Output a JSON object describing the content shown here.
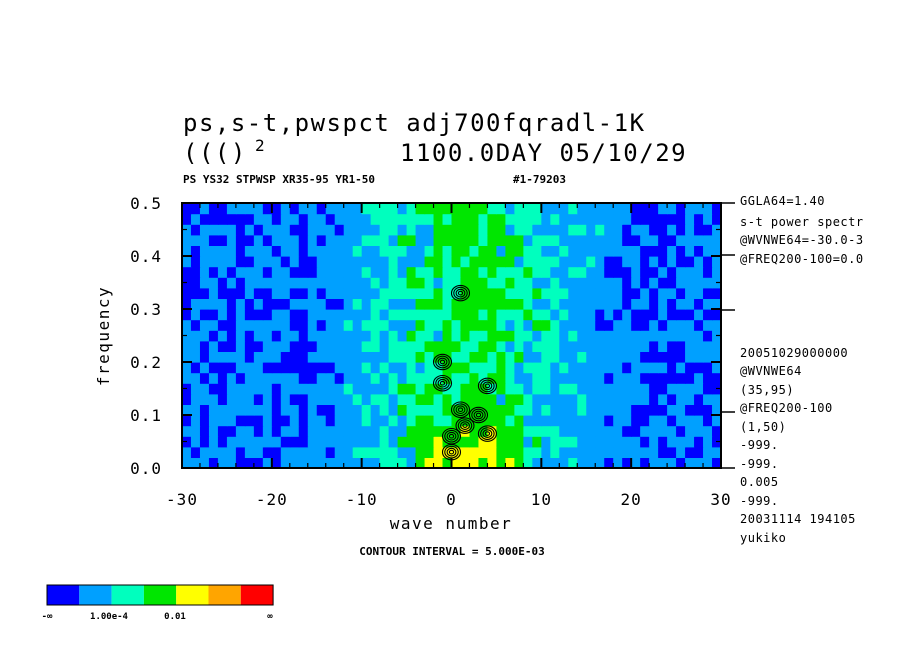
{
  "header": {
    "title_line1": "ps,s-t,pwspct  adj700fqradl-1K",
    "title_line2_left": "((()",
    "title_line2_sup": "2",
    "title_line2_right": "1100.0DAY 05/10/29",
    "subtitle_left": "PS YS32 STPWSP XR35-95 YR1-50",
    "subtitle_right": "#1-79203"
  },
  "side_info_top": [
    "GGLA64=1.40",
    "s-t power spectr",
    "@WVNWE64=-30.0-3",
    "@FREQ200-100=0.0"
  ],
  "side_info_bottom": [
    "20051029000000",
    "@WVNWE64",
    "(35,95)",
    "@FREQ200-100",
    "(1,50)",
    "-999.",
    "-999.",
    "0.005",
    "-999.",
    "20031114 194105",
    "yukiko"
  ],
  "footer": {
    "contour_interval": "CONTOUR INTERVAL = 5.000E-03"
  },
  "colorbar": {
    "colors": [
      "#0000ff",
      "#00a0ff",
      "#00ffbe",
      "#00e600",
      "#ffff00",
      "#ffa500",
      "#ff0000"
    ],
    "labels": [
      "-∞",
      "1.00e-4",
      "0.01",
      "∞"
    ]
  },
  "chart_data": {
    "type": "heatmap",
    "title": "ps,s-t,pwspct  adj700fqradl-1K",
    "xlabel": "wave number",
    "ylabel": "frequency",
    "xlim": [
      -30,
      30
    ],
    "ylim": [
      0.0,
      0.5
    ],
    "xticks": [
      "-30",
      "-20",
      "-10",
      "0",
      "10",
      "20",
      "30"
    ],
    "yticks": [
      "0.0",
      "0.1",
      "0.2",
      "0.3",
      "0.4",
      "0.5"
    ],
    "band_colors": {
      "outer": "#0000ff",
      "background": "#00a0ff",
      "mid": "#00ffbe",
      "inner": "#00e600",
      "peak": "#ffff00"
    },
    "green_band_center_wavenumber": 2,
    "contour_interval": 0.005,
    "contour_peaks": [
      {
        "k": 1,
        "f": 0.33
      },
      {
        "k": -1,
        "f": 0.2
      },
      {
        "k": -1,
        "f": 0.16
      },
      {
        "k": 4,
        "f": 0.155
      },
      {
        "k": 1,
        "f": 0.11
      },
      {
        "k": 3,
        "f": 0.1
      },
      {
        "k": 1.5,
        "f": 0.08
      },
      {
        "k": 0,
        "f": 0.06
      },
      {
        "k": 0,
        "f": 0.03
      },
      {
        "k": 4,
        "f": 0.065
      }
    ]
  }
}
